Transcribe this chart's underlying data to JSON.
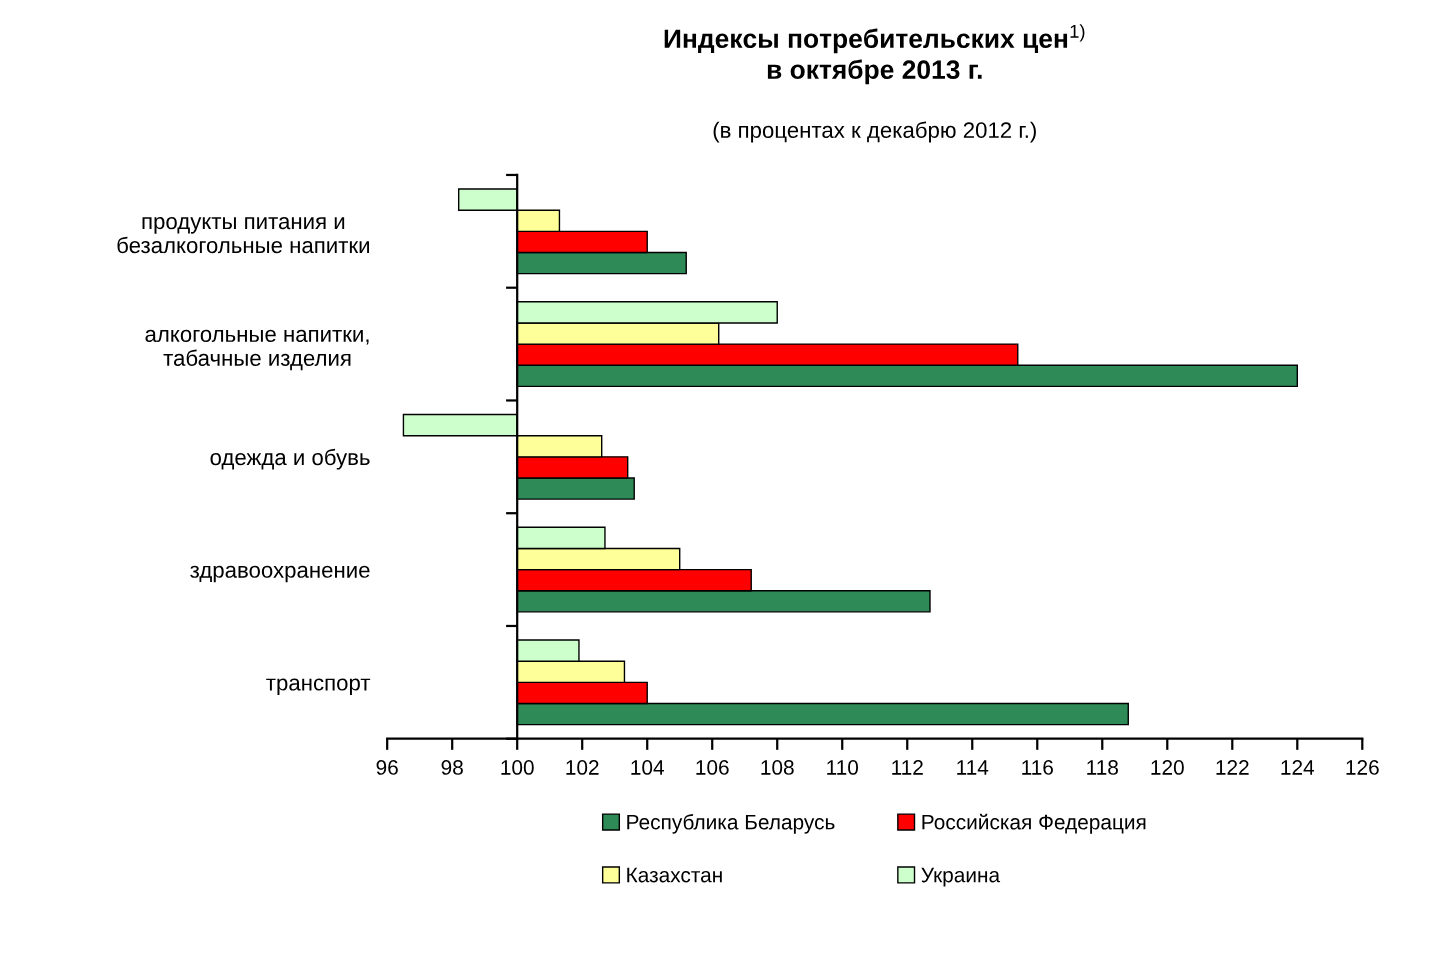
{
  "chart_data": {
    "type": "bar",
    "orientation": "horizontal",
    "title": "Индексы потребительских цен$^{1)}$\nв октябре 2013 г.",
    "subtitle": "(в процентах к декабрю 2012 г.)",
    "categories": [
      "продукты питания и\nбезалкогольные напитки",
      "алкогольные напитки,\nтабачные изделия",
      "одежда и обувь",
      "здравоохранение",
      "транспорт"
    ],
    "series": [
      {
        "name": "Республика Беларусь",
        "color": "#2e8b57",
        "base": [
          100,
          100,
          100,
          100,
          100
        ],
        "values": [
          5.2,
          24.0,
          3.6,
          12.7,
          18.8
        ]
      },
      {
        "name": "Российская Федерация",
        "color": "#ff0000",
        "base": [
          100,
          100,
          100,
          100,
          100
        ],
        "values": [
          4.0,
          15.4,
          3.4,
          7.2,
          4.0
        ]
      },
      {
        "name": "Казахстан",
        "color": "#ffff99",
        "base": [
          100,
          100,
          100,
          100,
          100
        ],
        "values": [
          1.3,
          6.2,
          2.6,
          5.0,
          3.3
        ]
      },
      {
        "name": "Украина",
        "color": "#ccffcc",
        "base": [
          100,
          100,
          100,
          100,
          100
        ],
        "values": [
          -1.8,
          8.0,
          -3.5,
          2.7,
          1.9
        ]
      }
    ],
    "xlim": [
      96,
      126
    ],
    "xticks": [
      96,
      98,
      100,
      102,
      104,
      106,
      108,
      110,
      112,
      114,
      116,
      118,
      120,
      122,
      124,
      126
    ],
    "legend": "bottom"
  }
}
